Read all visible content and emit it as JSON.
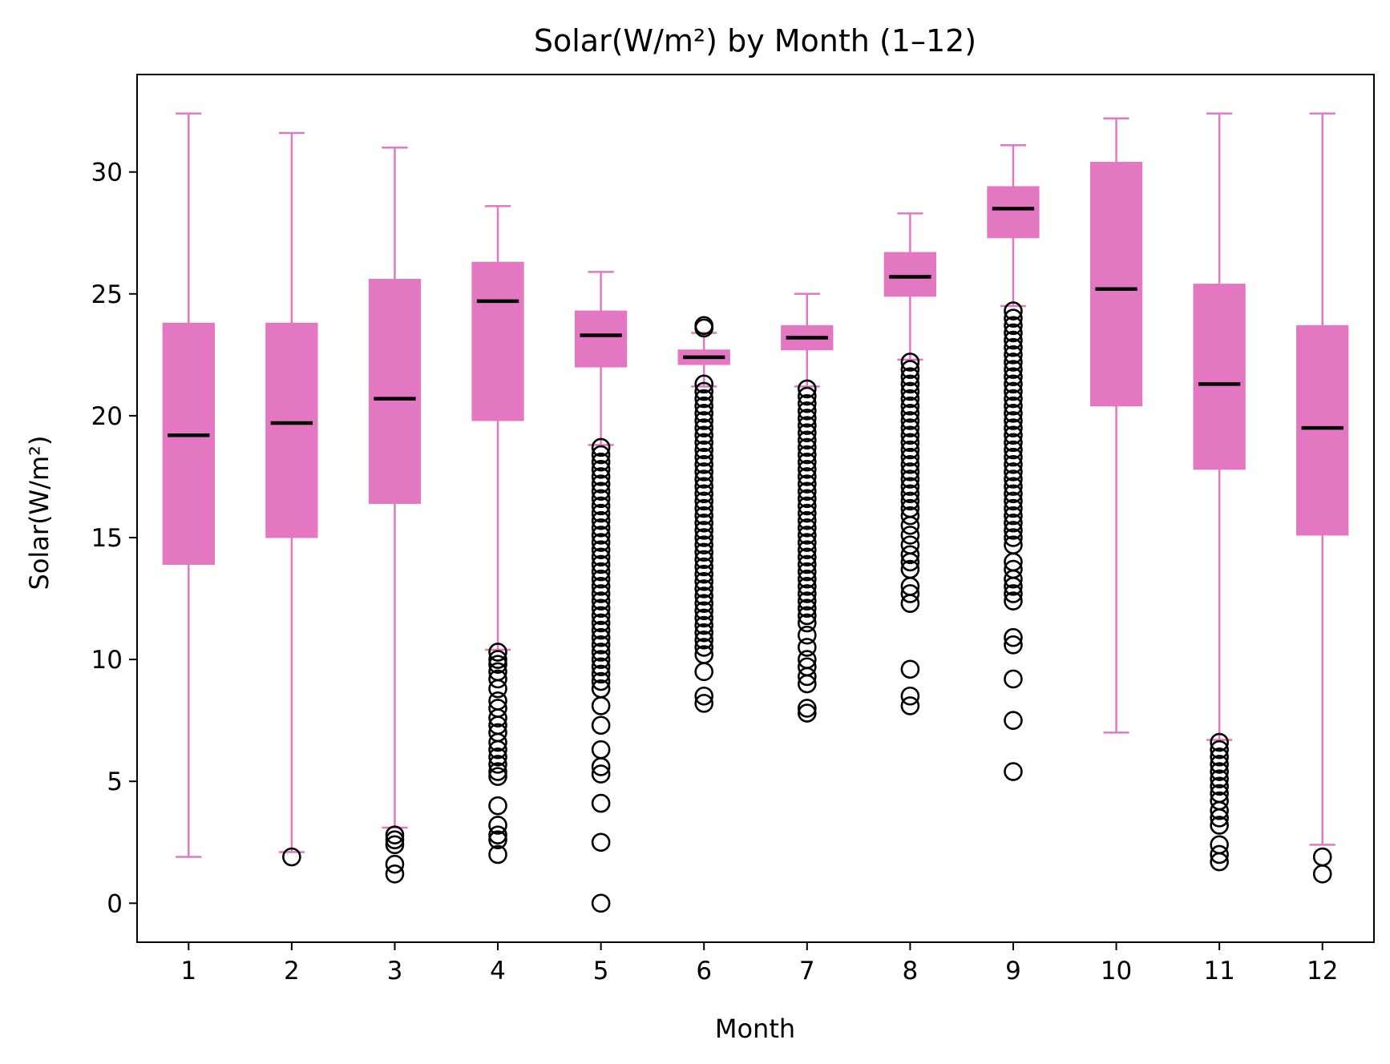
{
  "chart_data": {
    "type": "box",
    "title": "Solar(W/m²) by Month (1–12)",
    "xlabel": "Month",
    "ylabel": "Solar(W/m²)",
    "ylim": [
      -1.6,
      34.0
    ],
    "yticks": [
      0,
      5,
      10,
      15,
      20,
      25,
      30
    ],
    "grid": false,
    "legend": "none",
    "colors": {
      "box": "#e377c2",
      "median": "#000000",
      "flier": "#000000",
      "frame": "#000000"
    },
    "categories": [
      "1",
      "2",
      "3",
      "4",
      "5",
      "6",
      "7",
      "8",
      "9",
      "10",
      "11",
      "12"
    ],
    "boxes": [
      {
        "month": "1",
        "whislo": 1.9,
        "q1": 13.9,
        "med": 19.2,
        "q3": 23.8,
        "whishi": 32.4,
        "fliers": []
      },
      {
        "month": "2",
        "whislo": 2.1,
        "q1": 15.0,
        "med": 19.7,
        "q3": 23.8,
        "whishi": 31.6,
        "fliers": [
          1.9
        ]
      },
      {
        "month": "3",
        "whislo": 3.1,
        "q1": 16.4,
        "med": 20.7,
        "q3": 25.6,
        "whishi": 31.0,
        "fliers": [
          2.8,
          2.6,
          2.4,
          1.6,
          1.2
        ]
      },
      {
        "month": "4",
        "whislo": 10.4,
        "q1": 19.8,
        "med": 24.7,
        "q3": 26.3,
        "whishi": 28.6,
        "fliers": [
          10.3,
          10.0,
          9.8,
          9.5,
          9.2,
          8.8,
          8.3,
          8.0,
          7.6,
          7.3,
          7.0,
          6.6,
          6.3,
          6.0,
          5.7,
          5.4,
          5.2,
          4.0,
          3.2,
          2.8,
          2.6,
          2.0
        ]
      },
      {
        "month": "5",
        "whislo": 18.8,
        "q1": 22.0,
        "med": 23.3,
        "q3": 24.3,
        "whishi": 25.9,
        "fliers": [
          18.7,
          18.4,
          18.1,
          17.8,
          17.5,
          17.2,
          16.9,
          16.6,
          16.3,
          16.0,
          15.7,
          15.4,
          15.1,
          14.8,
          14.5,
          14.2,
          13.9,
          13.6,
          13.3,
          13.0,
          12.7,
          12.4,
          12.1,
          11.8,
          11.5,
          11.2,
          10.9,
          10.6,
          10.3,
          10.0,
          9.7,
          9.4,
          9.1,
          8.8,
          8.1,
          7.3,
          6.3,
          5.6,
          5.3,
          4.1,
          2.5,
          0.0
        ]
      },
      {
        "month": "6",
        "whislo": 21.2,
        "q1": 22.1,
        "med": 22.4,
        "q3": 22.7,
        "whishi": 23.4,
        "fliers": [
          23.7,
          23.6,
          21.3,
          21.0,
          20.7,
          20.4,
          20.1,
          19.8,
          19.5,
          19.2,
          18.9,
          18.6,
          18.3,
          18.0,
          17.7,
          17.4,
          17.1,
          16.8,
          16.5,
          16.2,
          15.9,
          15.6,
          15.3,
          15.0,
          14.7,
          14.4,
          14.1,
          13.8,
          13.5,
          13.2,
          12.9,
          12.6,
          12.3,
          12.0,
          11.7,
          11.4,
          11.1,
          10.8,
          10.5,
          10.2,
          9.5,
          8.5,
          8.2
        ]
      },
      {
        "month": "7",
        "whislo": 21.2,
        "q1": 22.7,
        "med": 23.2,
        "q3": 23.7,
        "whishi": 25.0,
        "fliers": [
          21.1,
          20.8,
          20.5,
          20.2,
          19.9,
          19.6,
          19.3,
          19.0,
          18.7,
          18.4,
          18.1,
          17.8,
          17.5,
          17.2,
          16.9,
          16.6,
          16.3,
          16.0,
          15.7,
          15.4,
          15.1,
          14.8,
          14.5,
          14.2,
          13.9,
          13.6,
          13.3,
          13.0,
          12.7,
          12.4,
          12.1,
          11.8,
          11.5,
          11.0,
          10.5,
          10.0,
          9.7,
          9.3,
          9.0,
          8.0,
          7.8
        ]
      },
      {
        "month": "8",
        "whislo": 22.3,
        "q1": 24.9,
        "med": 25.7,
        "q3": 26.7,
        "whishi": 28.3,
        "fliers": [
          22.2,
          21.9,
          21.6,
          21.3,
          21.0,
          20.7,
          20.4,
          20.1,
          19.8,
          19.5,
          19.2,
          18.9,
          18.6,
          18.3,
          18.0,
          17.7,
          17.4,
          17.1,
          16.8,
          16.5,
          16.2,
          15.9,
          15.5,
          15.1,
          14.7,
          14.3,
          14.0,
          13.7,
          13.0,
          12.7,
          12.3,
          9.6,
          8.5,
          8.1
        ]
      },
      {
        "month": "9",
        "whislo": 24.5,
        "q1": 27.3,
        "med": 28.5,
        "q3": 29.4,
        "whishi": 31.1,
        "fliers": [
          24.3,
          24.0,
          23.7,
          23.4,
          23.1,
          22.8,
          22.5,
          22.2,
          21.9,
          21.6,
          21.3,
          21.0,
          20.7,
          20.4,
          20.1,
          19.8,
          19.5,
          19.2,
          18.9,
          18.6,
          18.3,
          18.0,
          17.7,
          17.4,
          17.1,
          16.8,
          16.5,
          16.2,
          15.9,
          15.6,
          15.3,
          15.0,
          14.7,
          14.0,
          13.7,
          13.3,
          13.0,
          12.7,
          12.4,
          10.9,
          10.6,
          9.2,
          7.5,
          5.4
        ]
      },
      {
        "month": "10",
        "whislo": 7.0,
        "q1": 20.4,
        "med": 25.2,
        "q3": 30.4,
        "whishi": 32.2,
        "fliers": []
      },
      {
        "month": "11",
        "whislo": 6.7,
        "q1": 17.8,
        "med": 21.3,
        "q3": 25.4,
        "whishi": 32.4,
        "fliers": [
          6.6,
          6.3,
          6.0,
          5.7,
          5.4,
          5.1,
          4.8,
          4.5,
          4.2,
          3.8,
          3.5,
          3.2,
          2.4,
          2.0,
          1.7
        ]
      },
      {
        "month": "12",
        "whislo": 2.4,
        "q1": 15.1,
        "med": 19.5,
        "q3": 23.7,
        "whishi": 32.4,
        "fliers": [
          1.9,
          1.2
        ]
      }
    ]
  }
}
